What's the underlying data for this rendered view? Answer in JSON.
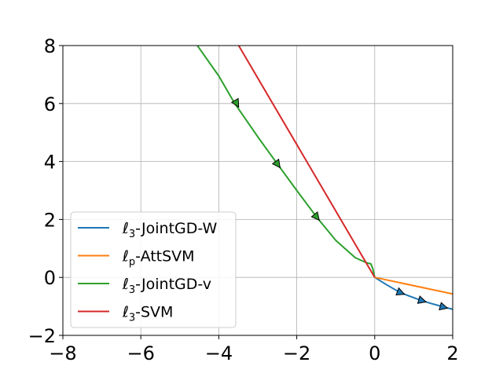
{
  "chart_data": {
    "type": "line",
    "title": "",
    "xlabel": "",
    "ylabel": "",
    "xlim": [
      -8,
      2
    ],
    "ylim": [
      -2,
      8
    ],
    "xticks": [
      -8,
      -6,
      -4,
      -2,
      0,
      2
    ],
    "yticks": [
      -2,
      0,
      2,
      4,
      6,
      8
    ],
    "xtick_labels": [
      "−8",
      "−6",
      "−4",
      "−2",
      "0",
      "2"
    ],
    "ytick_labels": [
      "−2",
      "0",
      "2",
      "4",
      "6",
      "8"
    ],
    "grid": true,
    "legend_position": "lower-left",
    "series": [
      {
        "name": "ℓ3-JointGD-W",
        "color": "#1f77b4",
        "points": [
          [
            0,
            0
          ],
          [
            0.3,
            -0.25
          ],
          [
            0.65,
            -0.52
          ],
          [
            0.9,
            -0.65
          ],
          [
            1.2,
            -0.8
          ],
          [
            1.5,
            -0.92
          ],
          [
            1.8,
            -1.03
          ],
          [
            2.0,
            -1.1
          ]
        ],
        "arrows": [
          [
            0.65,
            -0.52
          ],
          [
            1.2,
            -0.8
          ],
          [
            1.75,
            -1.02
          ]
        ]
      },
      {
        "name": "ℓp-AttSVM",
        "color": "#ff7f0e",
        "points": [
          [
            0,
            0
          ],
          [
            2.0,
            -0.57
          ]
        ],
        "arrows": []
      },
      {
        "name": "ℓ3-JointGD-v",
        "color": "#2ca02c",
        "points": [
          [
            -4.55,
            8.0
          ],
          [
            -4.0,
            6.95
          ],
          [
            -3.6,
            6.02
          ],
          [
            -3.0,
            4.85
          ],
          [
            -2.5,
            3.92
          ],
          [
            -2.0,
            3.0
          ],
          [
            -1.5,
            2.1
          ],
          [
            -1.0,
            1.28
          ],
          [
            -0.5,
            0.68
          ],
          [
            -0.2,
            0.5
          ],
          [
            -0.1,
            0.47
          ],
          [
            -0.05,
            0.3
          ],
          [
            0,
            0
          ]
        ],
        "arrows": [
          [
            -3.55,
            6.02
          ],
          [
            -2.5,
            3.92
          ],
          [
            -1.5,
            2.1
          ]
        ]
      },
      {
        "name": "ℓ3-SVM",
        "color": "#d62728",
        "points": [
          [
            -3.49,
            8.0
          ],
          [
            0,
            0
          ]
        ],
        "arrows": []
      }
    ]
  },
  "legend": {
    "items": [
      {
        "base": "ℓ",
        "sub": "3",
        "rest": "-JointGD-W",
        "color": "#1f77b4"
      },
      {
        "base": "ℓ",
        "sub": "p",
        "rest": "-AttSVM",
        "color": "#ff7f0e"
      },
      {
        "base": "ℓ",
        "sub": "3",
        "rest": "-JointGD-v",
        "color": "#2ca02c"
      },
      {
        "base": "ℓ",
        "sub": "3",
        "rest": "-SVM",
        "color": "#d62728"
      }
    ]
  }
}
